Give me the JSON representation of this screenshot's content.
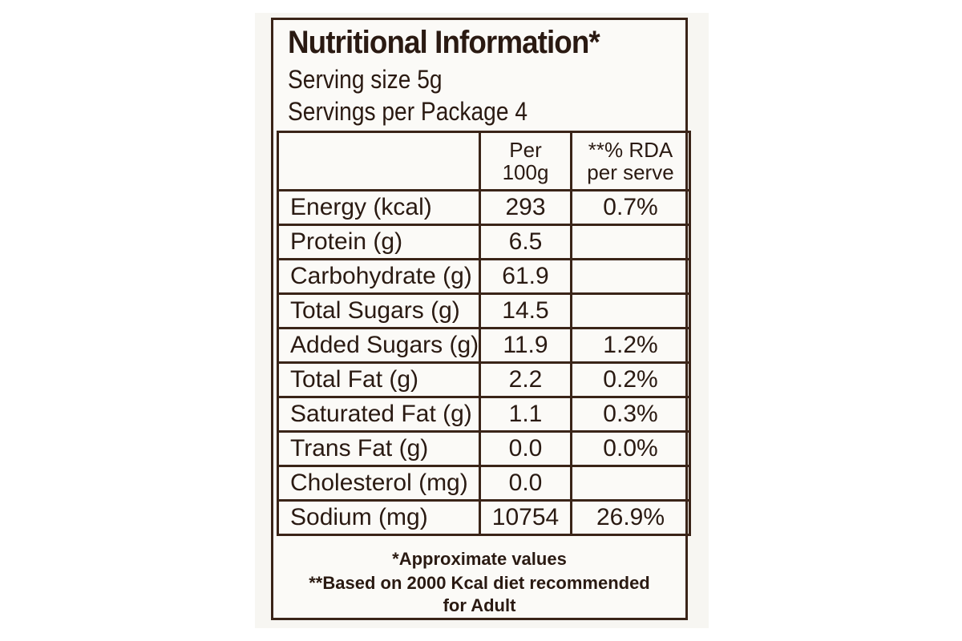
{
  "title": "Nutritional Information*",
  "serving_size": "Serving size 5g",
  "servings_per_package": "Servings per Package 4",
  "columns": {
    "per_100g_line1": "Per",
    "per_100g_line2": "100g",
    "rda_line1": "**% RDA",
    "rda_line2": "per serve"
  },
  "rows": [
    {
      "name": "Energy (kcal)",
      "per100": "293",
      "rda": "0.7%"
    },
    {
      "name": "Protein (g)",
      "per100": "6.5",
      "rda": ""
    },
    {
      "name": "Carbohydrate (g)",
      "per100": "61.9",
      "rda": ""
    },
    {
      "name": "Total Sugars (g)",
      "per100": "14.5",
      "rda": ""
    },
    {
      "name": "Added Sugars (g)",
      "per100": "11.9",
      "rda": "1.2%"
    },
    {
      "name": "Total Fat (g)",
      "per100": "2.2",
      "rda": "0.2%"
    },
    {
      "name": "Saturated Fat (g)",
      "per100": "1.1",
      "rda": "0.3%"
    },
    {
      "name": "Trans Fat (g)",
      "per100": "0.0",
      "rda": "0.0%"
    },
    {
      "name": "Cholesterol (mg)",
      "per100": "0.0",
      "rda": ""
    },
    {
      "name": "Sodium (mg)",
      "per100": "10754",
      "rda": "26.9%"
    }
  ],
  "footnotes": {
    "approx": "*Approximate values",
    "based_on_line1": "**Based on 2000 Kcal diet recommended",
    "based_on_line2": "for Adult"
  },
  "colors": {
    "ink": "#3a2418",
    "paper": "#fbfaf7"
  }
}
